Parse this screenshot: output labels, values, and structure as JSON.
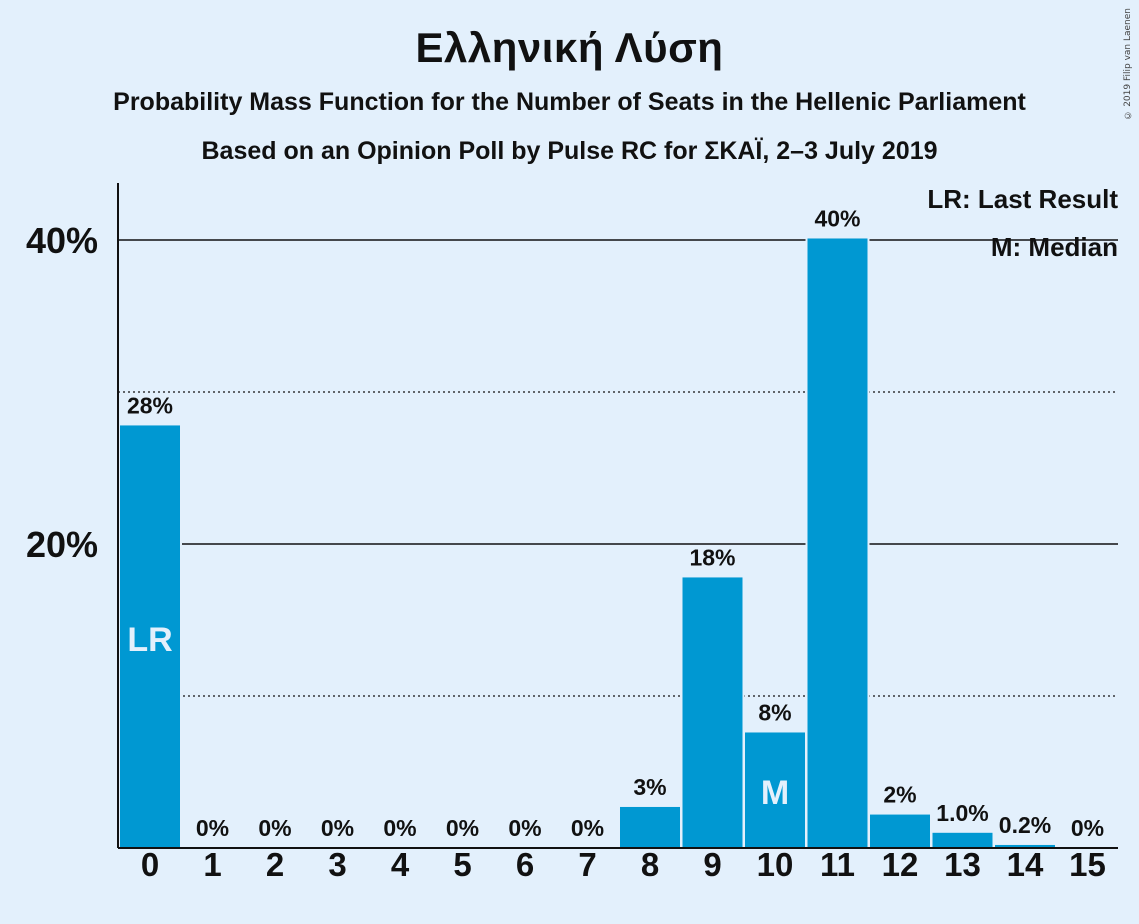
{
  "title": "Ελληνική Λύση",
  "subtitle1": "Probability Mass Function for the Number of Seats in the Hellenic Parliament",
  "subtitle2": "Based on an Opinion Poll by Pulse RC for ΣΚΑΪ, 2–3 July 2019",
  "copyright": "© 2019 Filip van Laenen",
  "legend": {
    "last_result": "LR: Last Result",
    "median": "M: Median"
  },
  "colors": {
    "background": "#e3f0fc",
    "bar": "#0098d2",
    "bar_label_inside": "#e3f0fc"
  },
  "chart_data": {
    "type": "bar",
    "categories": [
      "0",
      "1",
      "2",
      "3",
      "4",
      "5",
      "6",
      "7",
      "8",
      "9",
      "10",
      "11",
      "12",
      "13",
      "14",
      "15"
    ],
    "values": [
      27.8,
      0,
      0,
      0,
      0,
      0,
      0,
      0,
      2.7,
      17.8,
      7.6,
      40.1,
      2.2,
      1.0,
      0.2,
      0
    ],
    "data_labels": [
      "28%",
      "0%",
      "0%",
      "0%",
      "0%",
      "0%",
      "0%",
      "0%",
      "3%",
      "18%",
      "8%",
      "40%",
      "2%",
      "1.0%",
      "0.2%",
      "0%"
    ],
    "inside_labels": {
      "0": "LR",
      "10": "M"
    },
    "y_ticks": [
      {
        "value": 20,
        "label": "20%"
      },
      {
        "value": 40,
        "label": "40%"
      }
    ],
    "minor_gridlines": [
      10,
      30
    ],
    "ylim": [
      0,
      43.7
    ],
    "xlabel": "",
    "ylabel": "",
    "legend_position": "top-right"
  }
}
